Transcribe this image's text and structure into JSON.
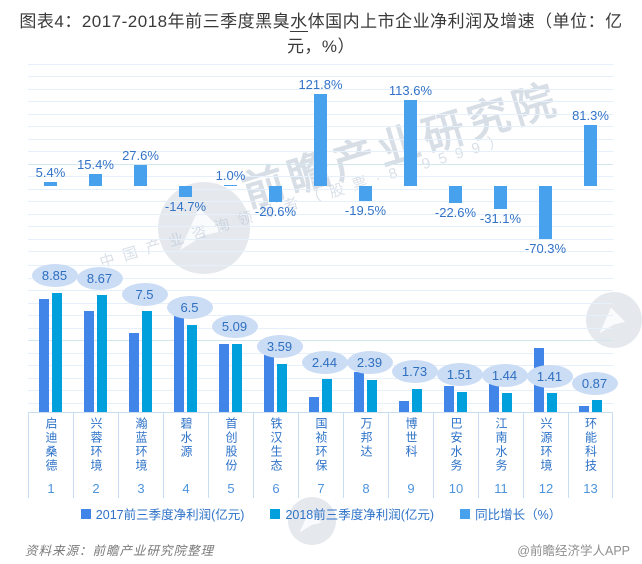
{
  "title": {
    "line1_pre": "图表4：2017-2018年前三季度黑臭",
    "underline": "水",
    "line1_post": "体国内上市企业净利润及增速（单位：亿",
    "line2": "元，%）"
  },
  "chart_data": {
    "type": "bar",
    "title": "2017-2018年前三季度黑臭水体国内上市企业净利润及增速",
    "unit": "亿元，%",
    "grid": true,
    "legend_position": "bottom",
    "categories": [
      "启迪桑德",
      "兴蓉环境",
      "瀚蓝环境",
      "碧水源",
      "首创股份",
      "铁汉生态",
      "国祯环保",
      "万邦达",
      "博世科",
      "巴安水务",
      "江南水务",
      "兴源环境",
      "环能科技"
    ],
    "category_indices": [
      "1",
      "2",
      "3",
      "4",
      "5",
      "6",
      "7",
      "8",
      "9",
      "10",
      "11",
      "12",
      "13"
    ],
    "series": [
      {
        "name": "2017前三季度净利润(亿元)",
        "color": "#4285e8",
        "values": [
          8.4,
          7.51,
          5.88,
          7.62,
          5.04,
          4.52,
          1.1,
          2.97,
          0.81,
          1.95,
          2.09,
          4.75,
          0.48
        ]
      },
      {
        "name": "2018前三季度净利润(亿元)",
        "color": "#00a0dc",
        "values": [
          8.85,
          8.67,
          7.5,
          6.5,
          5.09,
          3.59,
          2.44,
          2.39,
          1.73,
          1.51,
          1.44,
          1.41,
          0.87
        ]
      },
      {
        "name": "同比增长（%）",
        "color": "#47a1ec",
        "values": [
          5.4,
          15.4,
          27.6,
          -14.7,
          1.0,
          -20.6,
          121.8,
          -19.5,
          113.6,
          -22.6,
          -31.1,
          -70.3,
          81.3
        ]
      }
    ],
    "growth_labels": [
      "5.4%",
      "15.4%",
      "27.6%",
      "-14.7%",
      "1.0%",
      "-20.6%",
      "121.8%",
      "-19.5%",
      "113.6%",
      "-22.6%",
      "-31.1%",
      "-70.3%",
      "81.3%"
    ],
    "profit_labels": [
      "8.85",
      "8.67",
      "7.5",
      "6.5",
      "5.09",
      "3.59",
      "2.44",
      "2.39",
      "1.73",
      "1.51",
      "1.44",
      "1.41",
      "0.87"
    ]
  },
  "watermark": {
    "brand": "前瞻产业研究院",
    "tagline": "中国产业咨询领导者（股票·839599）"
  },
  "footer": {
    "source": "资料来源：前瞻产业研究院整理",
    "credit": "@前瞻经济学人APP"
  }
}
